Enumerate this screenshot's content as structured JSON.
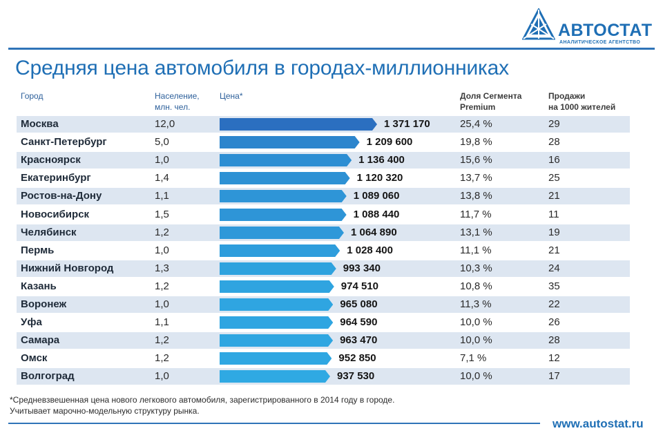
{
  "brand": {
    "name": "АВТОСТАТ",
    "tagline": "АНАЛИТИЧЕСКОЕ АГЕНТСТВО"
  },
  "title": "Средняя цена автомобиля в городах-миллионниках",
  "headers": {
    "city": "Город",
    "population_1": "Население,",
    "population_2": "млн. чел.",
    "price": "Цена*",
    "share_1": "Доля Сегмента",
    "share_2": "Premium",
    "sales_1": "Продажи",
    "sales_2": "на 1000 жителей"
  },
  "colors": {
    "accent": "#1f6fb5",
    "bar_dark": "#2b6fc0",
    "bar_light": "#2fa9e3",
    "row_shade": "#dde6f1"
  },
  "chart_data": {
    "type": "bar",
    "orientation": "horizontal",
    "title": "Средняя цена автомобиля в городах-миллионниках",
    "value_label": "Цена*",
    "categories": [
      "Москва",
      "Санкт-Петербург",
      "Красноярск",
      "Екатеринбург",
      "Ростов-на-Дону",
      "Новосибирск",
      "Челябинск",
      "Пермь",
      "Нижний Новгород",
      "Казань",
      "Воронеж",
      "Уфа",
      "Самара",
      "Омск",
      "Волгоград"
    ],
    "values": [
      1371170,
      1209600,
      1136400,
      1120320,
      1089060,
      1088440,
      1064890,
      1028400,
      993340,
      974510,
      965080,
      964590,
      963470,
      952850,
      937530
    ],
    "value_labels": [
      "1 371 170",
      "1 209 600",
      "1 136 400",
      "1 120 320",
      "1 089 060",
      "1 088 440",
      "1 064 890",
      "1 028 400",
      "993 340",
      "974 510",
      "965 080",
      "964 590",
      "963 470",
      "952 850",
      "937 530"
    ],
    "population": [
      "12,0",
      "5,0",
      "1,0",
      "1,4",
      "1,1",
      "1,5",
      "1,2",
      "1,0",
      "1,3",
      "1,2",
      "1,0",
      "1,1",
      "1,2",
      "1,2",
      "1,0"
    ],
    "premium_share": [
      "25,4 %",
      "19,8 %",
      "15,6 %",
      "13,7 %",
      "13,8 %",
      "11,7 %",
      "13,1 %",
      "11,1 %",
      "10,3 %",
      "10,8 %",
      "11,3 %",
      "10,0 %",
      "10,0 %",
      "7,1 %",
      "10,0 %"
    ],
    "sales_per_1000": [
      "29",
      "28",
      "16",
      "25",
      "21",
      "11",
      "19",
      "21",
      "24",
      "35",
      "22",
      "26",
      "28",
      "12",
      "17"
    ],
    "xlim": [
      0,
      1371170
    ]
  },
  "footnote_1": "*Средневзвешенная цена нового легкового автомобиля, зарегистрированного в 2014 году в городе.",
  "footnote_2": "Учитывает марочно-модельную структуру рынка.",
  "website": "www.autostat.ru"
}
